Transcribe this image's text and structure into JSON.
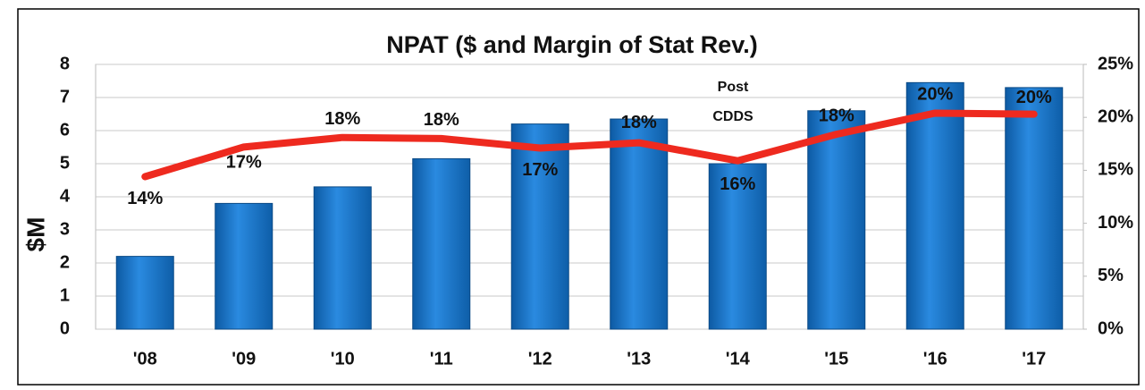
{
  "chart_data": {
    "type": "bar",
    "title": "NPAT ($ and Margin of Stat Rev.)",
    "y_label": "$M",
    "categories": [
      "'08",
      "'09",
      "'10",
      "'11",
      "'12",
      "'13",
      "'14",
      "'15",
      "'16",
      "'17"
    ],
    "series": [
      {
        "name": "NPAT",
        "type": "bar",
        "color": "#1a73c4",
        "values": [
          2.2,
          3.8,
          4.3,
          5.15,
          6.2,
          6.35,
          5.0,
          6.6,
          7.45,
          7.3
        ]
      },
      {
        "name": "Margin",
        "type": "line",
        "axis": "y2",
        "color": "#ee2a1f",
        "values": [
          14.4,
          17.2,
          18.1,
          18.0,
          17.1,
          17.6,
          15.9,
          18.4,
          20.4,
          20.3
        ],
        "value_labels": [
          "14%",
          "17%",
          "18%",
          "18%",
          "17%",
          "18%",
          "16%",
          "18%",
          "20%",
          "20%"
        ]
      }
    ],
    "ylim": [
      0,
      8
    ],
    "yticks": [
      0,
      1,
      2,
      3,
      4,
      5,
      6,
      7,
      8
    ],
    "y2lim": [
      0,
      25
    ],
    "y2ticks": [
      {
        "value": 0,
        "label": "0%"
      },
      {
        "value": 5,
        "label": "5%"
      },
      {
        "value": 10,
        "label": "10%"
      },
      {
        "value": 15,
        "label": "15%"
      },
      {
        "value": 20,
        "label": "20%"
      },
      {
        "value": 25,
        "label": "25%"
      }
    ],
    "annotation_lines": [
      "Post",
      "CDDS"
    ],
    "grid": true
  }
}
